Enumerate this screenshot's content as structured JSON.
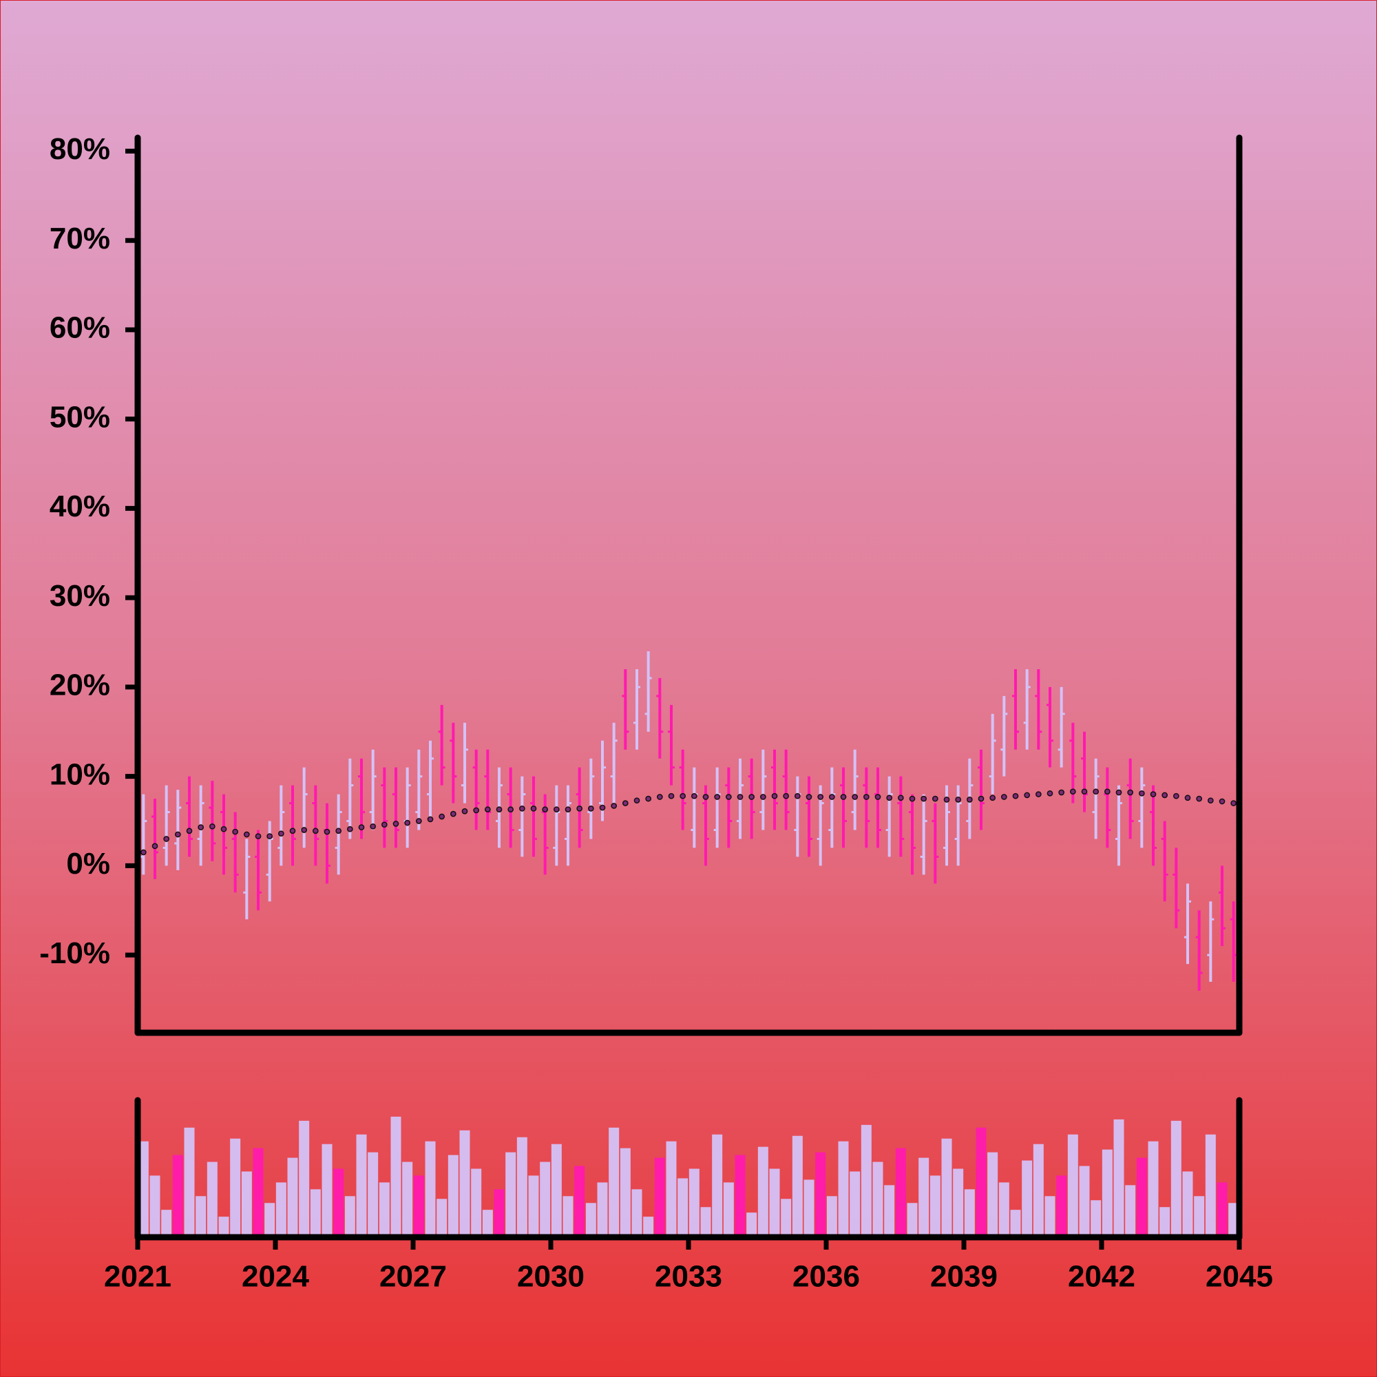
{
  "chart_data": {
    "type": "ohlc",
    "x": [
      2021,
      2021.25,
      2021.5,
      2021.75,
      2022,
      2022.25,
      2022.5,
      2022.75,
      2023,
      2023.25,
      2023.5,
      2023.75,
      2024,
      2024.25,
      2024.5,
      2024.75,
      2025,
      2025.25,
      2025.5,
      2025.75,
      2026,
      2026.25,
      2026.5,
      2026.75,
      2027,
      2027.25,
      2027.5,
      2027.75,
      2028,
      2028.25,
      2028.5,
      2028.75,
      2029,
      2029.25,
      2029.5,
      2029.75,
      2030,
      2030.25,
      2030.5,
      2030.75,
      2031,
      2031.25,
      2031.5,
      2031.75,
      2032,
      2032.25,
      2032.5,
      2032.75,
      2033,
      2033.25,
      2033.5,
      2033.75,
      2034,
      2034.25,
      2034.5,
      2034.75,
      2035,
      2035.25,
      2035.5,
      2035.75,
      2036,
      2036.25,
      2036.5,
      2036.75,
      2037,
      2037.25,
      2037.5,
      2037.75,
      2038,
      2038.25,
      2038.5,
      2038.75,
      2039,
      2039.25,
      2039.5,
      2039.75,
      2040,
      2040.25,
      2040.5,
      2040.75,
      2041,
      2041.25,
      2041.5,
      2041.75,
      2042,
      2042.25,
      2042.5,
      2042.75,
      2043,
      2043.25,
      2043.5,
      2043.75,
      2044,
      2044.25,
      2044.5,
      2044.75
    ],
    "open": [
      1,
      5.5,
      2,
      2.5,
      7,
      3,
      6.5,
      6,
      3,
      -3,
      1,
      -1,
      2,
      7,
      4,
      7,
      4,
      2,
      5,
      10,
      6,
      9,
      8,
      5,
      6,
      8,
      15,
      14,
      9,
      11,
      10,
      5,
      8,
      4,
      7,
      6,
      2,
      3,
      8,
      6,
      7,
      10,
      19,
      16,
      17,
      19,
      15,
      11,
      4,
      7,
      4,
      9,
      5,
      10,
      6,
      11,
      10,
      4,
      7,
      3,
      4,
      9,
      6,
      9,
      8,
      4,
      7,
      6,
      1,
      5,
      2,
      3,
      5,
      11,
      10,
      13,
      19,
      16,
      19,
      18,
      13,
      14,
      12,
      6,
      8,
      3,
      9,
      5,
      6,
      3,
      -1,
      -8,
      -8,
      -10,
      -3,
      -6
    ],
    "high": [
      8,
      7.5,
      9,
      8.5,
      10,
      9,
      9.5,
      8,
      6,
      3,
      4,
      5,
      9,
      9,
      11,
      9,
      7,
      8,
      12,
      12,
      13,
      11,
      11,
      11,
      13,
      14,
      18,
      16,
      16,
      13,
      13,
      11,
      11,
      10,
      10,
      8,
      9,
      9,
      11,
      12,
      14,
      16,
      22,
      22,
      24,
      21,
      18,
      13,
      11,
      9,
      11,
      11,
      12,
      12,
      13,
      13,
      13,
      10,
      10,
      9,
      11,
      11,
      13,
      11,
      11,
      10,
      10,
      8,
      8,
      7,
      9,
      9,
      12,
      13,
      17,
      19,
      22,
      22,
      22,
      20,
      20,
      16,
      15,
      12,
      11,
      9,
      12,
      11,
      9,
      5,
      2,
      -2,
      -5,
      -4,
      0,
      -4
    ],
    "low": [
      -1,
      -1.5,
      0,
      -0.5,
      1,
      0,
      0.5,
      -1,
      -3,
      -6,
      -5,
      -4,
      0,
      0,
      2,
      0,
      -2,
      -1,
      3,
      3,
      4,
      2,
      2,
      2,
      4,
      5,
      9,
      7,
      7,
      4,
      4,
      2,
      2,
      1,
      1,
      -1,
      0,
      0,
      2,
      3,
      5,
      7,
      13,
      13,
      15,
      12,
      9,
      4,
      2,
      0,
      2,
      2,
      3,
      3,
      4,
      4,
      4,
      1,
      1,
      0,
      2,
      2,
      4,
      2,
      2,
      1,
      1,
      -1,
      -1,
      -2,
      0,
      0,
      3,
      4,
      8,
      10,
      13,
      13,
      13,
      11,
      11,
      7,
      6,
      3,
      2,
      0,
      3,
      2,
      0,
      -4,
      -7,
      -11,
      -14,
      -13,
      -9,
      -13
    ],
    "close": [
      5,
      1.5,
      6,
      6.5,
      3,
      7,
      2.5,
      2,
      -1,
      1,
      -3,
      3,
      6,
      3,
      8,
      3,
      0,
      6,
      9,
      6,
      10,
      5,
      4,
      9,
      10,
      12,
      11,
      10,
      13,
      7,
      6,
      9,
      4,
      8,
      3,
      2,
      6,
      7,
      4,
      10,
      11,
      14,
      15,
      20,
      21,
      15,
      11,
      7,
      8,
      3,
      8,
      5,
      9,
      6,
      10,
      7,
      6,
      8,
      3,
      7,
      8,
      5,
      10,
      5,
      4,
      8,
      3,
      2,
      5,
      1,
      6,
      7,
      9,
      7,
      14,
      17,
      15,
      20,
      15,
      14,
      17,
      10,
      8,
      10,
      4,
      7,
      5,
      9,
      2,
      -1,
      -5,
      -4,
      -12,
      -6,
      -7,
      -10
    ],
    "ma": [
      1.5,
      2.2,
      3.0,
      3.5,
      3.9,
      4.3,
      4.4,
      4.1,
      3.8,
      3.5,
      3.3,
      3.3,
      3.6,
      3.9,
      4.0,
      3.9,
      3.8,
      3.9,
      4.1,
      4.3,
      4.4,
      4.6,
      4.7,
      4.8,
      5.0,
      5.2,
      5.5,
      5.8,
      6.1,
      6.2,
      6.3,
      6.3,
      6.3,
      6.4,
      6.4,
      6.3,
      6.3,
      6.3,
      6.4,
      6.4,
      6.5,
      6.7,
      7.0,
      7.3,
      7.5,
      7.7,
      7.8,
      7.8,
      7.8,
      7.7,
      7.7,
      7.7,
      7.7,
      7.7,
      7.7,
      7.8,
      7.8,
      7.8,
      7.7,
      7.7,
      7.7,
      7.7,
      7.7,
      7.7,
      7.7,
      7.6,
      7.6,
      7.5,
      7.5,
      7.5,
      7.4,
      7.4,
      7.4,
      7.5,
      7.6,
      7.7,
      7.8,
      7.9,
      8.0,
      8.1,
      8.2,
      8.3,
      8.3,
      8.3,
      8.3,
      8.2,
      8.2,
      8.1,
      8.0,
      7.9,
      7.8,
      7.6,
      7.5,
      7.3,
      7.2,
      7.0
    ],
    "volume": [
      70,
      45,
      20,
      60,
      80,
      30,
      55,
      15,
      72,
      48,
      65,
      25,
      40,
      58,
      85,
      35,
      68,
      50,
      30,
      75,
      62,
      40,
      88,
      55,
      45,
      70,
      28,
      60,
      78,
      50,
      20,
      35,
      62,
      73,
      45,
      55,
      68,
      30,
      52,
      25,
      40,
      80,
      65,
      35,
      15,
      58,
      70,
      43,
      50,
      22,
      75,
      40,
      60,
      18,
      66,
      50,
      28,
      74,
      42,
      62,
      30,
      70,
      48,
      82,
      55,
      38,
      65,
      25,
      58,
      45,
      72,
      50,
      35,
      80,
      62,
      40,
      20,
      56,
      68,
      30,
      45,
      75,
      52,
      27,
      64,
      86,
      38,
      58,
      70,
      22,
      85,
      48,
      30,
      75,
      40,
      25
    ],
    "up_color": "#d4c2f7",
    "down_color": "#ff1aae",
    "ma_color": "#7b2a78",
    "xlim": [
      2021,
      2045
    ],
    "xticks": [
      2021,
      2024,
      2027,
      2030,
      2033,
      2036,
      2039,
      2042,
      2045
    ],
    "ylim": [
      -18.7,
      81.5
    ],
    "yticks": [
      {
        "value": -10,
        "label": "-10%"
      },
      {
        "value": 0,
        "label": "0%"
      },
      {
        "value": 10,
        "label": "10%"
      },
      {
        "value": 20,
        "label": "20%"
      },
      {
        "value": 30,
        "label": "30%"
      },
      {
        "value": 40,
        "label": "40%"
      },
      {
        "value": 50,
        "label": "50%"
      },
      {
        "value": 60,
        "label": "60%"
      },
      {
        "value": 70,
        "label": "70%"
      },
      {
        "value": 80,
        "label": "80%"
      }
    ],
    "volume_lim": [
      0,
      100
    ]
  }
}
